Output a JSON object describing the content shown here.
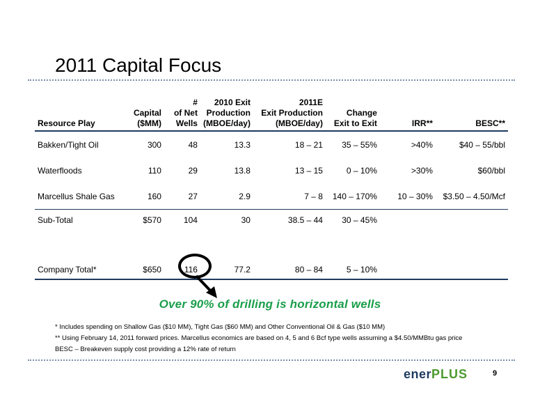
{
  "slide": {
    "title": "2011 Capital Focus",
    "page_number": "9"
  },
  "table": {
    "headers": [
      {
        "l1": "",
        "l2": "",
        "l3": "Resource Play"
      },
      {
        "l1": "",
        "l2": "Capital",
        "l3": "($MM)"
      },
      {
        "l1": "#",
        "l2": "of Net",
        "l3": "Wells"
      },
      {
        "l1": "2010 Exit",
        "l2": "Production",
        "l3": "(MBOE/day)"
      },
      {
        "l1": "2011E",
        "l2": "Exit Production",
        "l3": "(MBOE/day)"
      },
      {
        "l1": "",
        "l2": "Change",
        "l3": "Exit to Exit"
      },
      {
        "l1": "",
        "l2": "",
        "l3": "IRR**"
      },
      {
        "l1": "",
        "l2": "",
        "l3": "BESC**"
      }
    ],
    "rows": [
      [
        "Bakken/Tight Oil",
        "300",
        "48",
        "13.3",
        "18 – 21",
        "35 – 55%",
        ">40%",
        "$40 – 55/bbl"
      ],
      [
        "Waterfloods",
        "110",
        "29",
        "13.8",
        "13 – 15",
        "0 – 10%",
        ">30%",
        "$60/bbl"
      ],
      [
        "Marcellus Shale Gas",
        "160",
        "27",
        "2.9",
        "7 – 8",
        "140 – 170%",
        "10 – 30%",
        "$3.50 – 4.50/Mcf"
      ]
    ],
    "subtotal": [
      "Sub-Total",
      "$570",
      "104",
      "30",
      "38.5 – 44",
      "30 – 45%",
      "",
      ""
    ],
    "total": [
      "Company Total*",
      "$650",
      "116",
      "77.2",
      "80 – 84",
      "5 – 10%",
      "",
      ""
    ]
  },
  "callout": "Over 90% of drilling is horizontal wells",
  "footnotes": [
    "* Includes spending on Shallow Gas ($10 MM), Tight Gas ($60 MM) and Other Conventional Oil & Gas ($10 MM)",
    "** Using February 14, 2011 forward prices. Marcellus economics are based on 4, 5 and 6 Bcf type wells assuming a $4.50/MMBtu gas price",
    "BESC – Breakeven supply cost providing a 12% rate of return"
  ],
  "logo": {
    "part1": "ener",
    "part2": "PLUS"
  },
  "colors": {
    "accent_navy": "#1f3a5f",
    "callout_green": "#1a9e4a",
    "dots": "#7a8ea6"
  }
}
